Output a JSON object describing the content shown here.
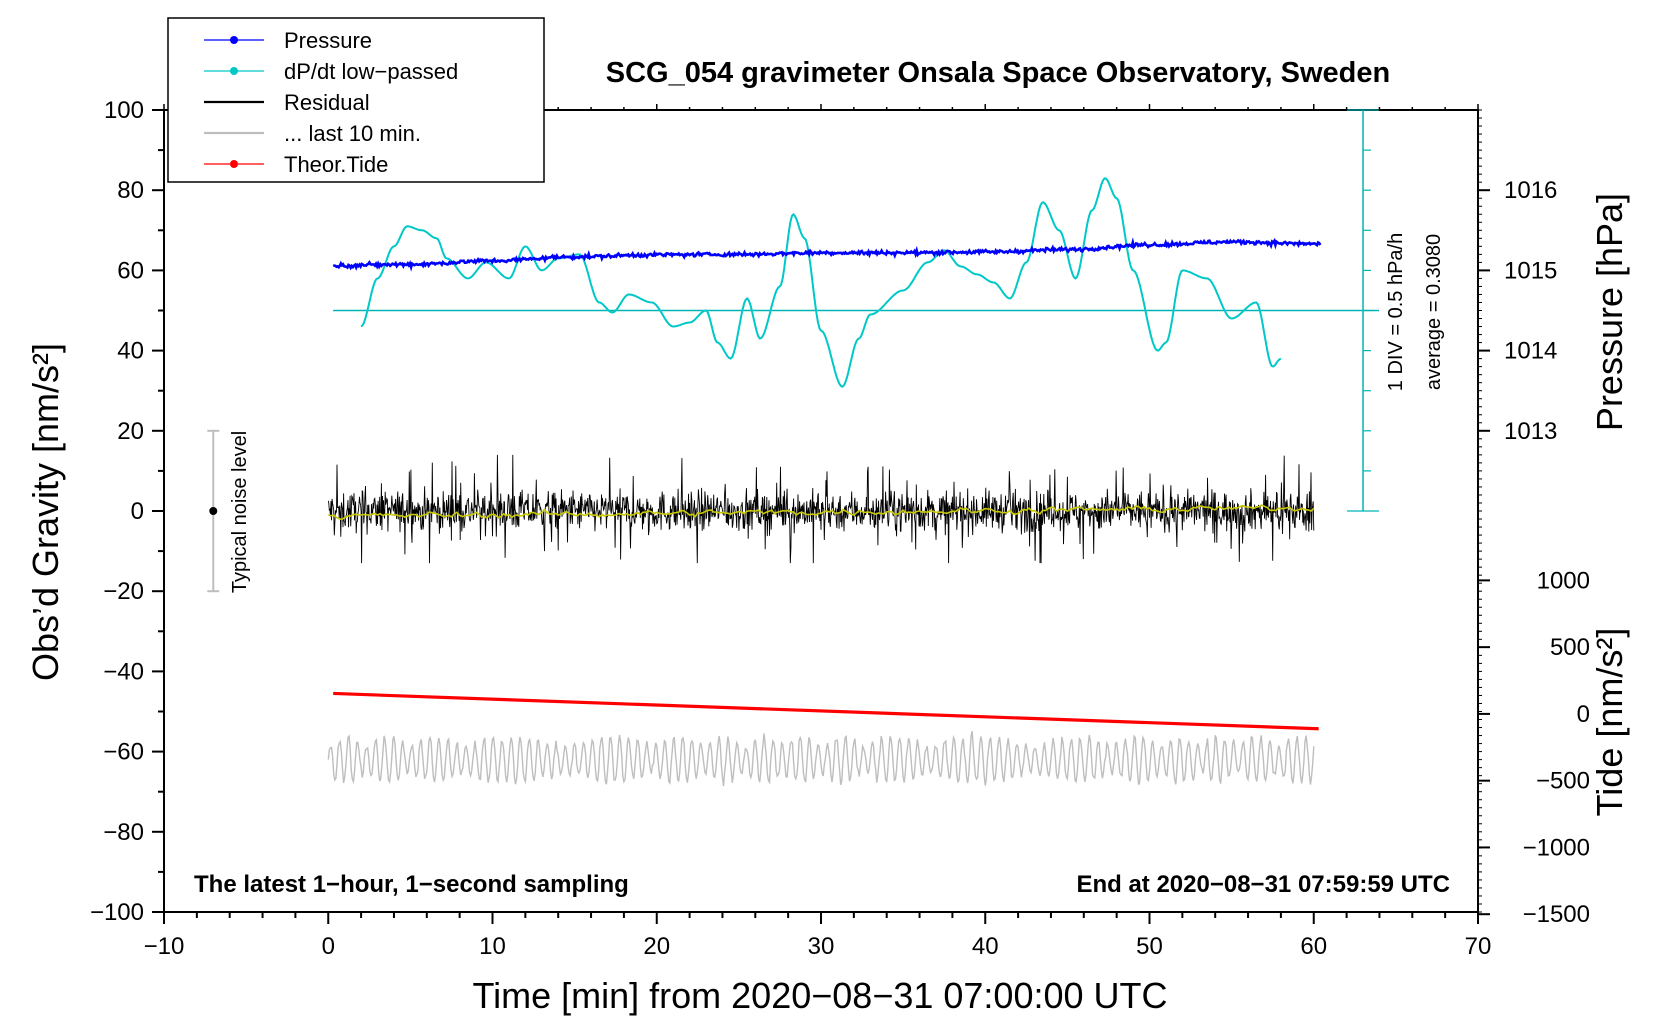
{
  "chart_data": {
    "type": "line",
    "title": "SCG_054 gravimeter Onsala Space Observatory, Sweden",
    "xlabel": "Time [min] from 2020−08−31 07:00:00 UTC",
    "ylabel_main": "Obs’d Gravity [nm/s²]",
    "ylabel_pressure": "Pressure [hPa]",
    "ylabel_tide": "Tide [nm/s²]",
    "xlim": [
      -10,
      70
    ],
    "ylim": [
      -100,
      100
    ],
    "x_ticks": [
      "−10",
      "0",
      "10",
      "20",
      "30",
      "40",
      "50",
      "60",
      "70"
    ],
    "y_ticks": [
      "100",
      "80",
      "60",
      "40",
      "20",
      "0",
      "−20",
      "−40",
      "−60",
      "−80",
      "−100"
    ],
    "pressure_ticks": [
      "1016",
      "1015",
      "1014",
      "1013"
    ],
    "pressure_tick_values": [
      1016,
      1015,
      1014,
      1013
    ],
    "pressure_scale": {
      "value_1015_at_gravity": 60,
      "gravity_units_per_hPa": 20
    },
    "tide_ticks": [
      "1000",
      "500",
      "0",
      "−500",
      "−1000",
      "−1500"
    ],
    "tide_tick_values": [
      1000,
      500,
      0,
      -500,
      -1000,
      -1500
    ],
    "tide_scale": {
      "zero_at_gravity": -50.6,
      "gravity_units_per_nm": 0.0333
    },
    "legend": [
      {
        "label": "Pressure",
        "color": "#0000ff",
        "marker": true
      },
      {
        "label": "dP/dt low−passed",
        "color": "#00c8c8",
        "marker": true
      },
      {
        "label": "Residual",
        "color": "#000000",
        "marker": false
      },
      {
        "label": "... last 10 min.",
        "color": "#bebebe",
        "marker": false
      },
      {
        "label": "Theor.Tide",
        "color": "#ff0000",
        "marker": true
      }
    ],
    "annotations": {
      "bottom_left": "The latest 1−hour, 1−second sampling",
      "bottom_right": "End at 2020−08−31 07:59:59 UTC",
      "noise": "Typical noise level",
      "dpdt_scale": "1 DIV = 0.5 hPa/h",
      "dpdt_average": "average = 0.3080"
    },
    "noise_bar": {
      "x": -7,
      "center": 0,
      "range": [
        -20,
        20
      ]
    },
    "dpdt_axis": {
      "x": 63,
      "range": [
        0,
        100
      ],
      "baseline": 50
    },
    "series": [
      {
        "name": "Pressure",
        "color": "#0000ff",
        "x": [
          0.3,
          5,
          10,
          15,
          20,
          25,
          30,
          35,
          40,
          45,
          50,
          55,
          60.4
        ],
        "values": [
          61.2,
          61.5,
          62.4,
          63.4,
          63.9,
          64.0,
          64.4,
          64.4,
          64.6,
          65.2,
          66.4,
          67.1,
          66.6
        ]
      },
      {
        "name": "dP/dt low−passed",
        "color": "#00c8c8",
        "x": [
          2,
          3,
          4,
          4.8,
          5.7,
          6.6,
          7.2,
          8.5,
          9.6,
          11,
          12,
          13,
          14,
          15.3,
          16.5,
          17.3,
          18.3,
          19.7,
          21,
          22,
          23,
          23.7,
          24.5,
          25.5,
          26.3,
          27.5,
          28.3,
          29,
          30,
          31.3,
          32.3,
          33,
          35,
          36.5,
          37.5,
          38.5,
          39.5,
          40.5,
          41.5,
          42.5,
          43.5,
          44.5,
          45.5,
          46.5,
          47.3,
          48,
          49,
          50.5,
          51,
          52,
          53.5,
          55,
          56.5,
          57.5,
          58
        ],
        "values": [
          46,
          58,
          66,
          71,
          70,
          68,
          63,
          58,
          62,
          58,
          66,
          60,
          63,
          64,
          52,
          49.5,
          54,
          52,
          46,
          47,
          50,
          42,
          38,
          53,
          43,
          56,
          74,
          68,
          45,
          31,
          43,
          49,
          55,
          62,
          65,
          61,
          59,
          57,
          53,
          62,
          77,
          70,
          58,
          75,
          83,
          78,
          60,
          40,
          42,
          60,
          58,
          48,
          52,
          36,
          38
        ]
      },
      {
        "name": "Theor.Tide",
        "color": "#ff0000",
        "x": [
          0.3,
          60.3
        ],
        "values": [
          -45.5,
          -54.3
        ]
      },
      {
        "name": "Residual",
        "color": "#000000",
        "x_range": [
          0,
          60
        ],
        "mean": 0,
        "amplitude_envelope": [
          -13,
          14
        ]
      },
      {
        "name": "Residual filtered",
        "color": "#c8c800",
        "x_range": [
          0,
          60
        ],
        "mean": 0
      },
      {
        "name": "... last 10 min.",
        "color": "#bebebe",
        "x_range": [
          0,
          60
        ],
        "mean": -62,
        "amplitude_envelope": [
          -71,
          -54
        ]
      }
    ]
  }
}
